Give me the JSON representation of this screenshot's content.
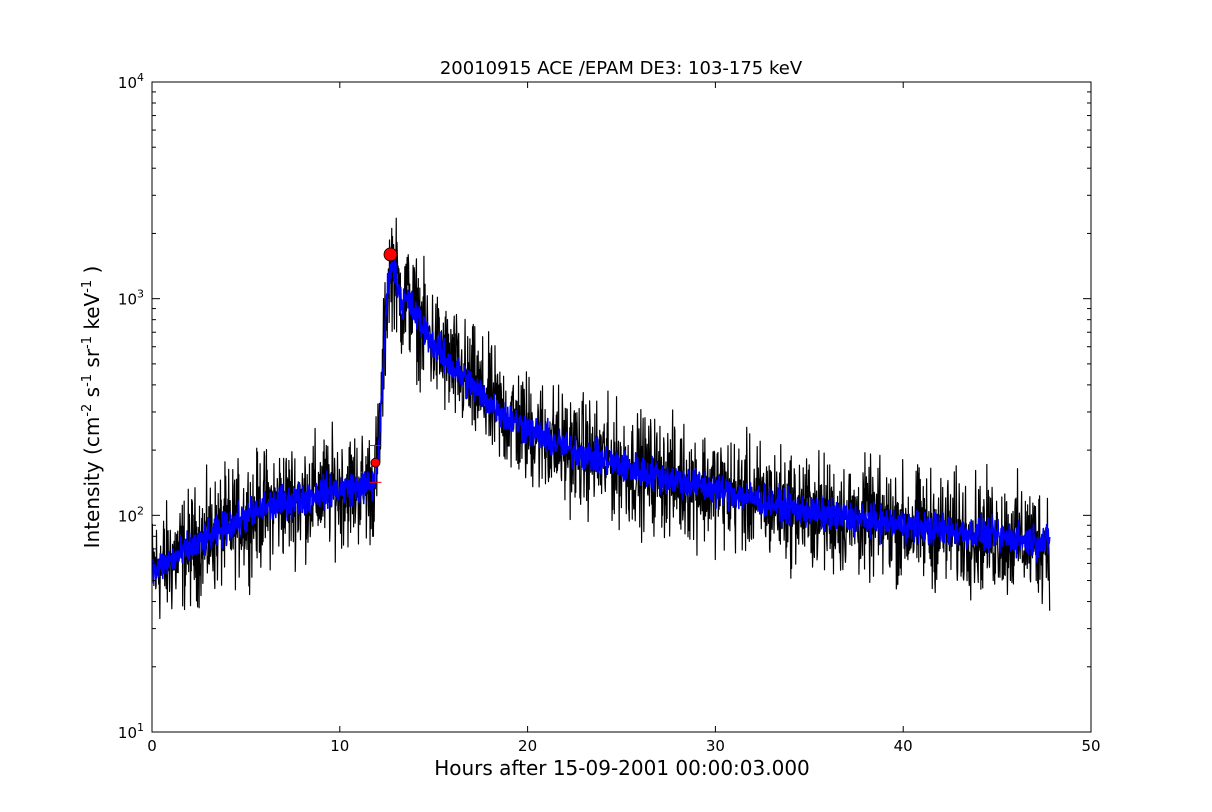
{
  "chart_data": {
    "type": "line",
    "title": "20010915 ACE /EPAM DE3: 103-175 keV",
    "xlabel": "Hours after 15-09-2001 00:00:03.000",
    "ylabel_main": "Intensity (cm",
    "ylabel_parts": [
      "-2",
      " s",
      "-1",
      " sr",
      "-1",
      " keV",
      "-1",
      " )"
    ],
    "xlim": [
      0,
      50
    ],
    "ylim": [
      10,
      10000
    ],
    "yscale": "log",
    "grid": false,
    "x_ticks": [
      {
        "value": 0,
        "label": "0"
      },
      {
        "value": 10,
        "label": "10"
      },
      {
        "value": 20,
        "label": "20"
      },
      {
        "value": 30,
        "label": "30"
      },
      {
        "value": 40,
        "label": "40"
      },
      {
        "value": 50,
        "label": "50"
      }
    ],
    "y_ticks": [
      {
        "value": 10,
        "base": "10",
        "exp": "1"
      },
      {
        "value": 100,
        "base": "10",
        "exp": "2"
      },
      {
        "value": 1000,
        "base": "10",
        "exp": "3"
      },
      {
        "value": 10000,
        "base": "10",
        "exp": "4"
      }
    ],
    "series": [
      {
        "role": "raw",
        "color": "#000000",
        "x": [
          0,
          1,
          2,
          3,
          4,
          5,
          6,
          7,
          8,
          9,
          10,
          11,
          11.8,
          12.0,
          12.2,
          12.4,
          12.6,
          12.8,
          13.0,
          13.3,
          13.6,
          14,
          15,
          16,
          17,
          18,
          19,
          20,
          22,
          24,
          26,
          28,
          30,
          32,
          34,
          36,
          38,
          40,
          42,
          44,
          46,
          47.8
        ],
        "y": [
          55,
          62,
          70,
          78,
          88,
          98,
          108,
          115,
          120,
          128,
          132,
          135,
          138,
          175,
          300,
          700,
          1300,
          1450,
          1250,
          950,
          1000,
          850,
          620,
          480,
          400,
          330,
          280,
          250,
          205,
          180,
          160,
          145,
          132,
          120,
          108,
          100,
          95,
          90,
          86,
          82,
          78,
          75
        ],
        "noise_spread": 0.55
      },
      {
        "role": "smoothed",
        "color": "#0000ff",
        "x": [
          0,
          1,
          2,
          3,
          4,
          5,
          6,
          7,
          8,
          9,
          10,
          11,
          11.8,
          12.0,
          12.2,
          12.4,
          12.6,
          12.8,
          13.0,
          13.3,
          13.6,
          14,
          15,
          16,
          17,
          18,
          19,
          20,
          22,
          24,
          26,
          28,
          30,
          32,
          34,
          36,
          38,
          40,
          42,
          44,
          46,
          47.8
        ],
        "y": [
          55,
          62,
          70,
          78,
          88,
          98,
          108,
          115,
          120,
          128,
          132,
          135,
          138,
          175,
          300,
          700,
          1300,
          1450,
          1250,
          950,
          1000,
          850,
          620,
          480,
          400,
          330,
          280,
          250,
          205,
          180,
          160,
          145,
          132,
          120,
          108,
          100,
          95,
          90,
          86,
          82,
          78,
          75
        ],
        "noise_spread": 0.16
      }
    ],
    "markers": [
      {
        "x": 11.9,
        "y": 175,
        "shape": "circle",
        "color": "#ff0000",
        "size": "small",
        "error_low": 142,
        "error_high": 210
      },
      {
        "x": 12.7,
        "y": 1600,
        "shape": "circle",
        "color": "#ff0000",
        "size": "large"
      }
    ]
  }
}
